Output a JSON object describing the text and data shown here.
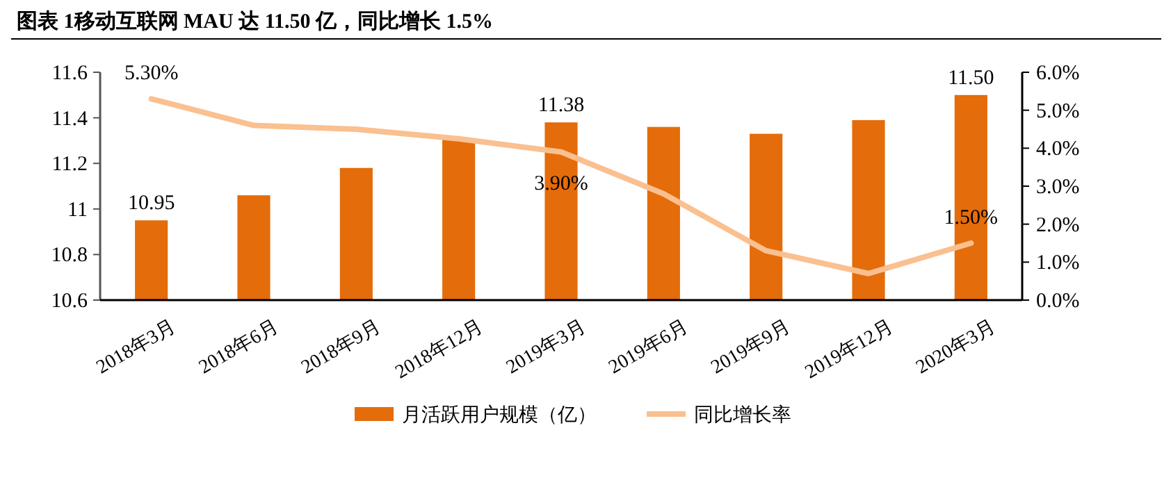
{
  "chart_data": {
    "type": "bar",
    "title": "图表 1移动互联网 MAU 达 11.50 亿，同比增长 1.5%",
    "categories": [
      "2018年3月",
      "2018年6月",
      "2018年9月",
      "2018年12月",
      "2019年3月",
      "2019年6月",
      "2019年9月",
      "2019年12月",
      "2020年3月"
    ],
    "series": [
      {
        "name": "月活跃用户规模（亿）",
        "color": "#e46c0a",
        "values": [
          10.95,
          11.06,
          11.18,
          11.31,
          11.38,
          11.36,
          11.33,
          11.39,
          11.5
        ],
        "value_labels": [
          "10.95",
          null,
          null,
          null,
          "11.38",
          null,
          null,
          null,
          "11.50"
        ]
      },
      {
        "name": "同比增长率",
        "type": "line",
        "axis": "y2",
        "color": "#fac090",
        "values": [
          5.3,
          4.6,
          4.5,
          4.25,
          3.9,
          2.8,
          1.3,
          0.7,
          1.5
        ],
        "value_labels": [
          "5.30%",
          null,
          null,
          null,
          "3.90%",
          null,
          null,
          null,
          "1.50%"
        ]
      }
    ],
    "ylim": [
      10.6,
      11.6
    ],
    "yticks": [
      {
        "value": 10.6,
        "label": "10.6"
      },
      {
        "value": 10.8,
        "label": "10.8"
      },
      {
        "value": 11,
        "label": "11"
      },
      {
        "value": 11.2,
        "label": "11.2"
      },
      {
        "value": 11.4,
        "label": "11.4"
      },
      {
        "value": 11.6,
        "label": "11.6"
      }
    ],
    "y2lim": [
      0,
      6
    ],
    "y2ticks": [
      {
        "value": 0,
        "label": "0.0%"
      },
      {
        "value": 1,
        "label": "1.0%"
      },
      {
        "value": 2,
        "label": "2.0%"
      },
      {
        "value": 3,
        "label": "3.0%"
      },
      {
        "value": 4,
        "label": "4.0%"
      },
      {
        "value": 5,
        "label": "5.0%"
      },
      {
        "value": 6,
        "label": "6.0%"
      }
    ],
    "legend": "bottom",
    "grid": false
  }
}
